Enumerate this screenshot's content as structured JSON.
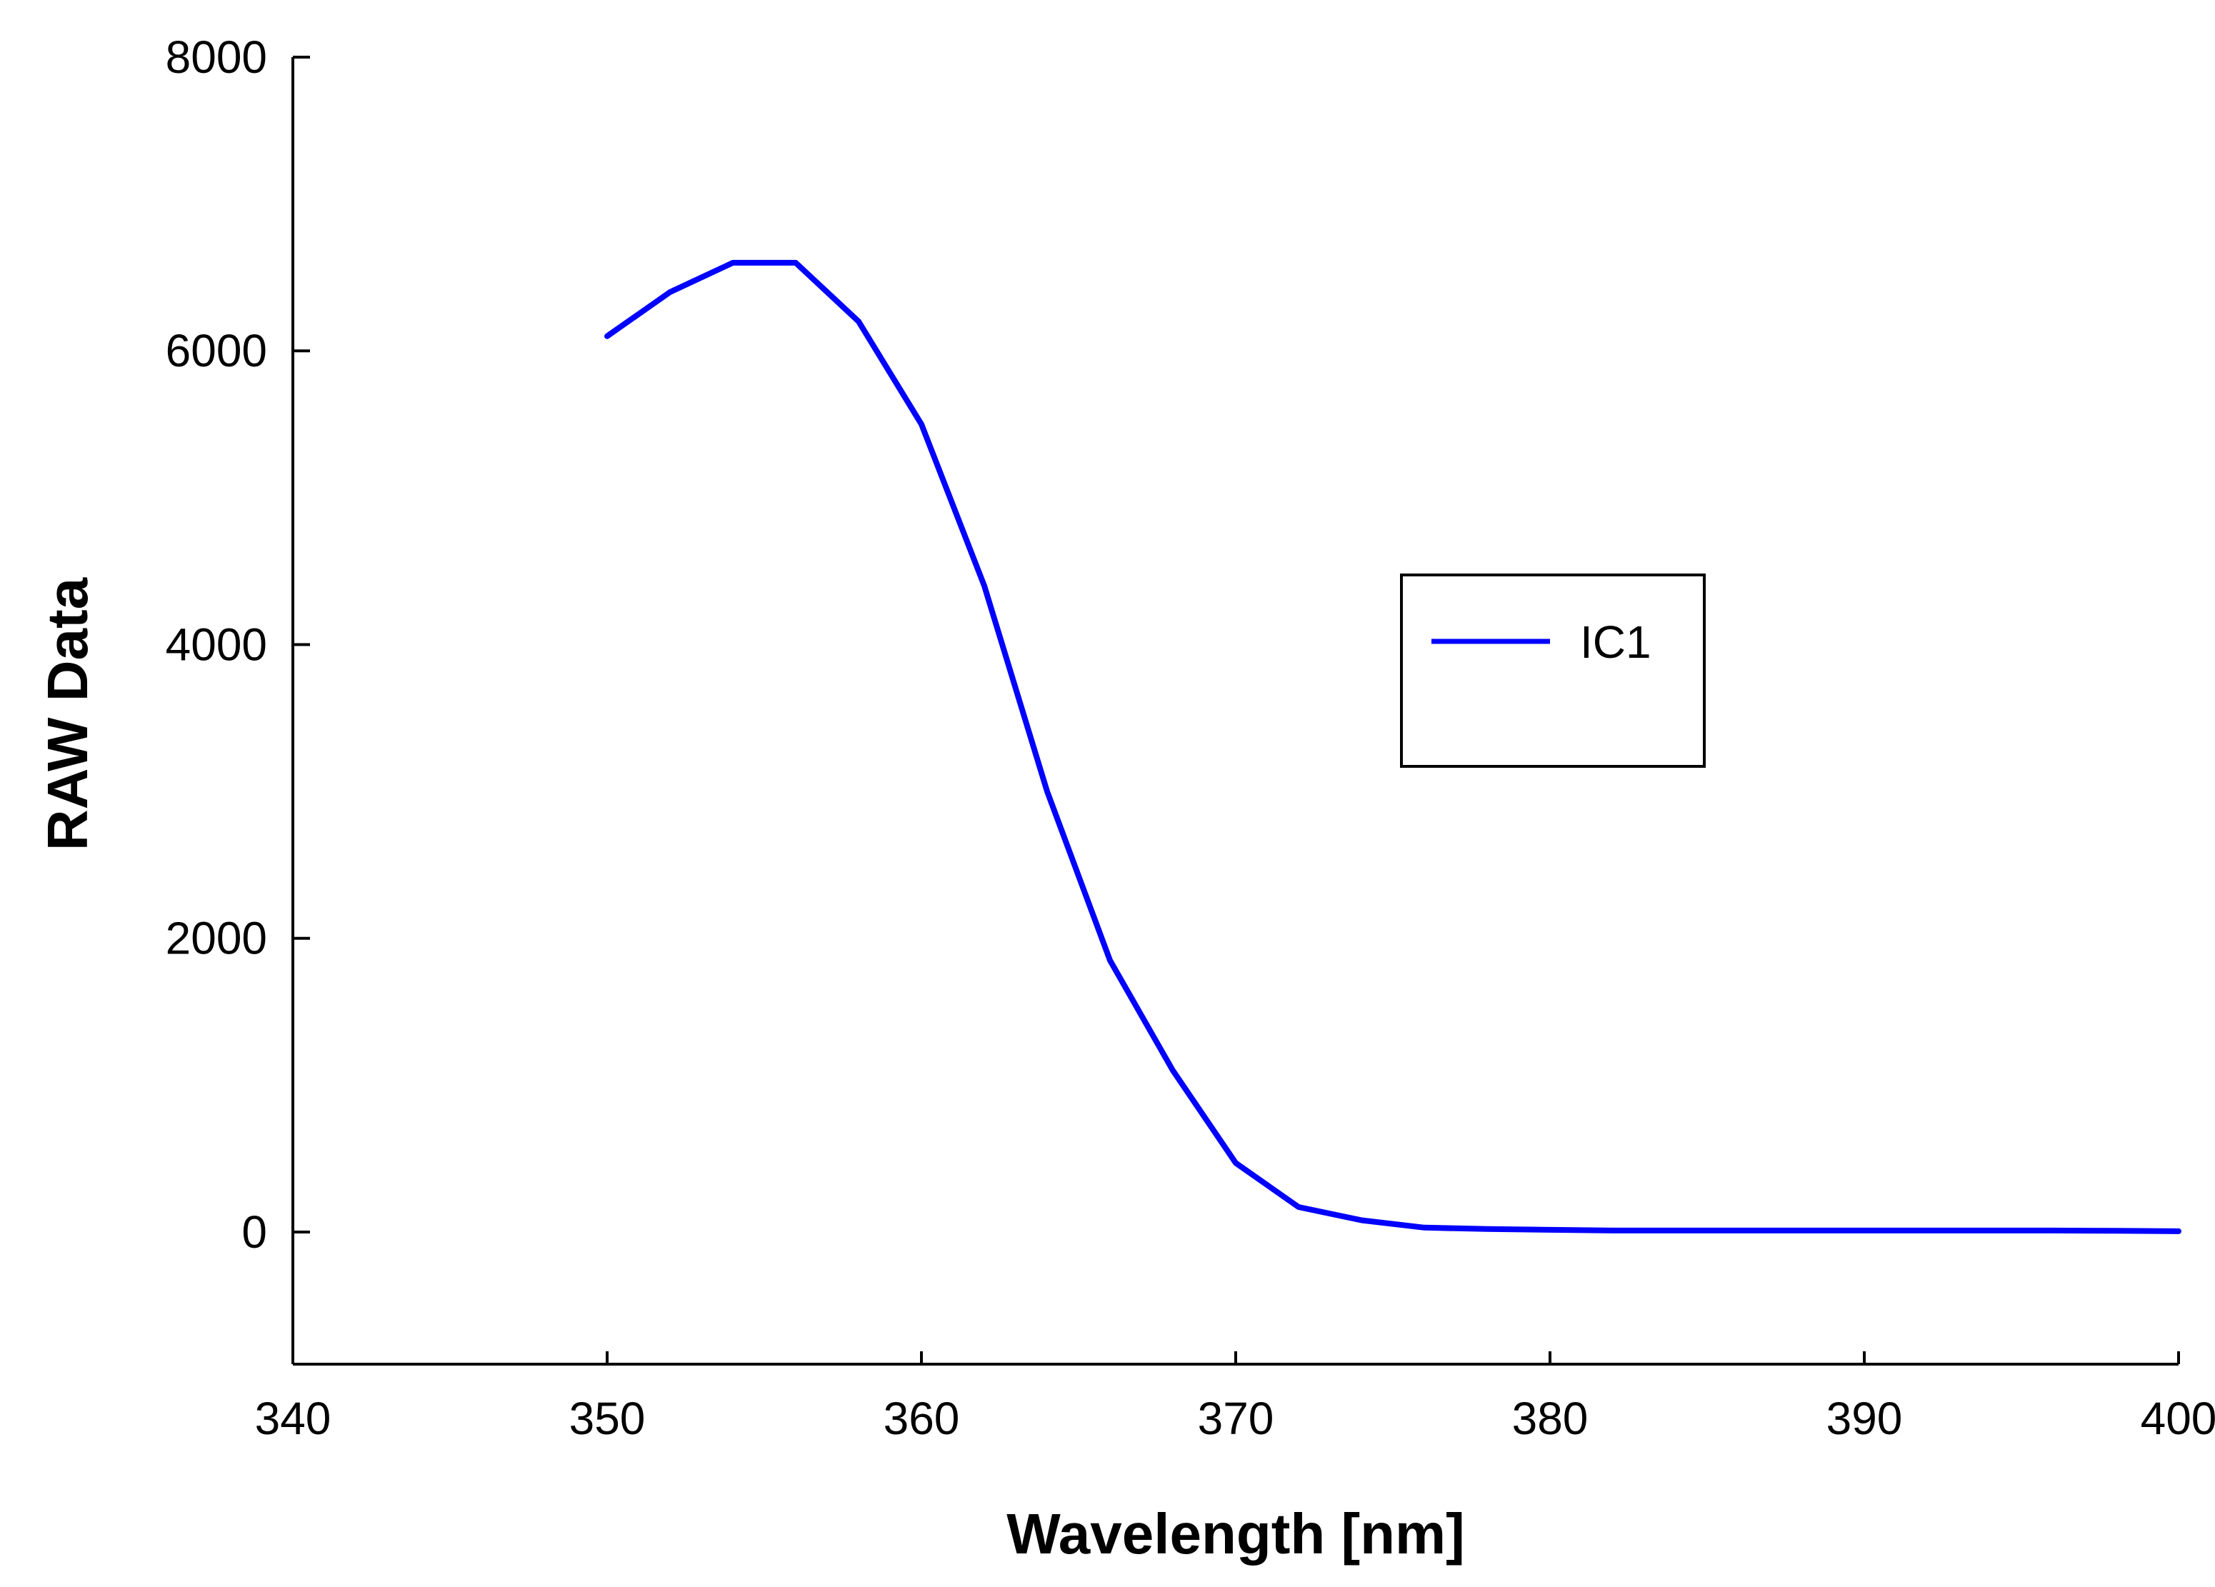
{
  "chart_data": {
    "type": "line",
    "title": "",
    "xlabel": "Wavelength [nm]",
    "ylabel": "RAW Data",
    "xlim": [
      340,
      400
    ],
    "ylim": [
      -900,
      8000
    ],
    "xticks": [
      340,
      350,
      360,
      370,
      380,
      390,
      400
    ],
    "yticks": [
      0,
      2000,
      4000,
      6000,
      8000
    ],
    "xtick_labels": [
      "340",
      "350",
      "360",
      "370",
      "380",
      "390",
      "400"
    ],
    "ytick_labels": [
      "0",
      "2000",
      "4000",
      "6000",
      "8000"
    ],
    "grid": false,
    "legend_position": "right",
    "series": [
      {
        "name": "IC1",
        "color": "#0000ff",
        "x": [
          350,
          352,
          354,
          356,
          358,
          360,
          362,
          364,
          366,
          368,
          370,
          372,
          374,
          376,
          378,
          380,
          382,
          384,
          386,
          388,
          390,
          392,
          394,
          396,
          398,
          400
        ],
        "y": [
          6100,
          6400,
          6600,
          6600,
          6200,
          5500,
          4400,
          3000,
          1850,
          1100,
          470,
          170,
          80,
          30,
          20,
          15,
          10,
          10,
          10,
          10,
          10,
          10,
          10,
          10,
          8,
          5
        ]
      }
    ]
  }
}
